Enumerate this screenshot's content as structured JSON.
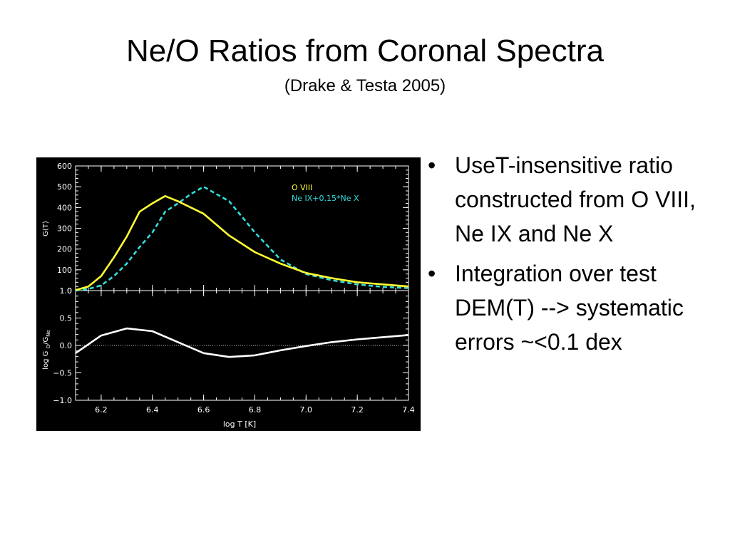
{
  "slide": {
    "title": "Ne/O Ratios from Coronal Spectra",
    "subtitle": "(Drake & Testa 2005)",
    "bullets": [
      "UseT-insensitive ratio constructed from O VIII,   Ne IX and Ne X",
      "Integration over test DEM(T) --> systematic errors ~<0.1 dex"
    ]
  },
  "chart_data": [
    {
      "type": "line",
      "ylabel": "G(T)",
      "xlim": [
        6.1,
        7.4
      ],
      "ylim": [
        0,
        600
      ],
      "yticks": [
        0,
        100,
        200,
        300,
        400,
        500,
        600
      ],
      "legend_position": "top-right",
      "series": [
        {
          "name": "O VIII",
          "color": "#ffff33",
          "style": "solid",
          "x": [
            6.1,
            6.15,
            6.2,
            6.25,
            6.3,
            6.35,
            6.4,
            6.45,
            6.5,
            6.6,
            6.7,
            6.8,
            6.9,
            7.0,
            7.1,
            7.2,
            7.3,
            7.4
          ],
          "y": [
            2,
            20,
            70,
            160,
            260,
            380,
            420,
            455,
            430,
            370,
            265,
            185,
            130,
            85,
            60,
            40,
            30,
            20
          ]
        },
        {
          "name": "Ne IX+0.15*Ne X",
          "color": "#33dddd",
          "style": "dashed",
          "x": [
            6.1,
            6.15,
            6.2,
            6.25,
            6.3,
            6.35,
            6.4,
            6.45,
            6.5,
            6.55,
            6.6,
            6.7,
            6.8,
            6.9,
            7.0,
            7.1,
            7.2,
            7.3,
            7.4
          ],
          "y": [
            0,
            8,
            25,
            70,
            130,
            210,
            280,
            380,
            420,
            465,
            500,
            430,
            280,
            150,
            80,
            50,
            30,
            18,
            12
          ]
        }
      ]
    },
    {
      "type": "line",
      "xlabel": "log T [K]",
      "ylabel": "log G",
      "ylabel_sub1": "O",
      "ylabel_mid": "/G",
      "ylabel_sub2": "Ne",
      "xlim": [
        6.1,
        7.4
      ],
      "ylim": [
        -1.0,
        1.0
      ],
      "xticks": [
        6.2,
        6.4,
        6.6,
        6.8,
        7.0,
        7.2,
        7.4
      ],
      "xtick_labels": [
        "6.2",
        "6.4",
        "6.6",
        "6.8",
        "7.0",
        "7.2",
        "7.4"
      ],
      "yticks": [
        -1.0,
        -0.5,
        0.0,
        0.5,
        1.0
      ],
      "ytick_labels": [
        "−1.0",
        "−0.5",
        "0.0",
        "0.5",
        "1.0"
      ],
      "reference_line": 0.0,
      "series": [
        {
          "color": "#ffffff",
          "style": "solid",
          "x": [
            6.1,
            6.2,
            6.3,
            6.4,
            6.5,
            6.6,
            6.7,
            6.8,
            6.9,
            7.0,
            7.1,
            7.2,
            7.3,
            7.4
          ],
          "y": [
            -0.14,
            0.18,
            0.31,
            0.26,
            0.06,
            -0.14,
            -0.21,
            -0.18,
            -0.09,
            -0.01,
            0.06,
            0.11,
            0.15,
            0.19
          ]
        }
      ]
    }
  ]
}
